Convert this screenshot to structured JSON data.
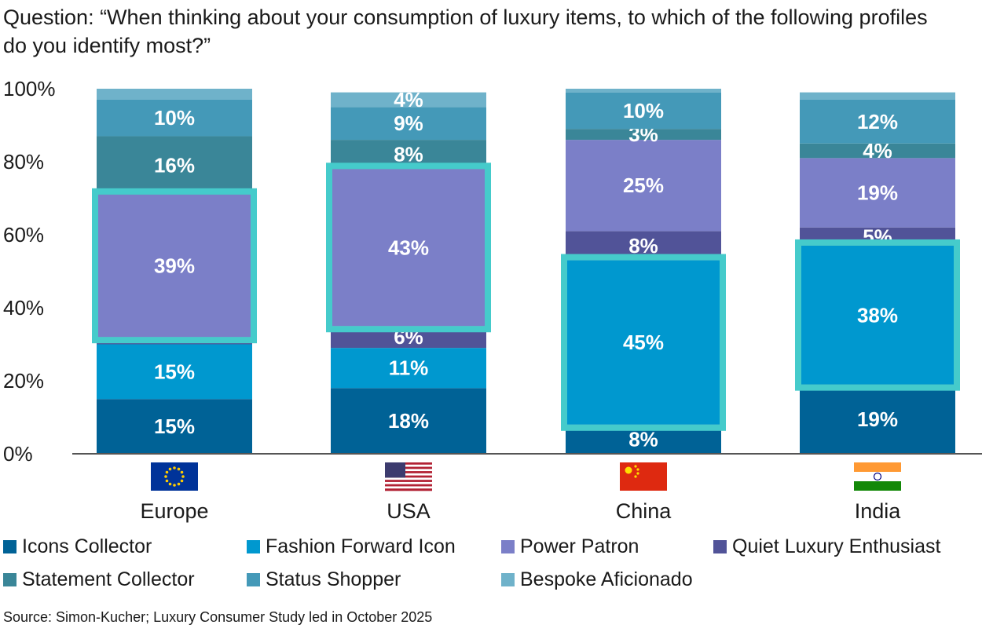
{
  "question": "Question: “When thinking about your consumption of luxury items, to which of the following profiles do you identify most?”",
  "source": "Source: Simon-Kucher; Luxury Consumer Study led in October 2025",
  "colors": {
    "Icons Collector": "#006296",
    "Fashion Forward Icon": "#0098cf",
    "Power Patron": "#7b7fc8",
    "Quiet Luxury Enthusiast": "#515398",
    "Statement Collector": "#3a8698",
    "Status Shopper": "#4499b8",
    "Bespoke Aficionado": "#6fb2ca",
    "highlight": "#45cbcb"
  },
  "chart_data": {
    "type": "bar",
    "stacked": true,
    "ylim": [
      0,
      100
    ],
    "yticks": [
      "0%",
      "20%",
      "40%",
      "60%",
      "80%",
      "100%"
    ],
    "categories": [
      "Europe",
      "USA",
      "China",
      "India"
    ],
    "flags": [
      "eu-flag-icon",
      "us-flag-icon",
      "cn-flag-icon",
      "in-flag-icon"
    ],
    "series": [
      {
        "name": "Icons Collector",
        "values": [
          15,
          18,
          8,
          19
        ],
        "labels": [
          "15%",
          "18%",
          "8%",
          "19%"
        ]
      },
      {
        "name": "Fashion Forward Icon",
        "values": [
          15,
          11,
          45,
          38
        ],
        "labels": [
          "15%",
          "11%",
          "45%",
          "38%"
        ]
      },
      {
        "name": "Quiet Luxury Enthusiast",
        "values": [
          2,
          6,
          8,
          5
        ],
        "labels": [
          "",
          "6%",
          "8%",
          "5%"
        ]
      },
      {
        "name": "Power Patron",
        "values": [
          39,
          43,
          25,
          19
        ],
        "labels": [
          "39%",
          "43%",
          "25%",
          "19%"
        ]
      },
      {
        "name": "Statement Collector",
        "values": [
          16,
          8,
          3,
          4
        ],
        "labels": [
          "16%",
          "8%",
          "3%",
          "4%"
        ]
      },
      {
        "name": "Status Shopper",
        "values": [
          10,
          9,
          10,
          12
        ],
        "labels": [
          "10%",
          "9%",
          "10%",
          "12%"
        ]
      },
      {
        "name": "Bespoke Aficionado",
        "values": [
          3,
          4,
          1,
          2
        ],
        "labels": [
          "",
          "4%",
          "",
          ""
        ]
      }
    ],
    "highlighted": [
      "Power Patron",
      "Power Patron",
      "Fashion Forward Icon",
      "Fashion Forward Icon"
    ],
    "legend": [
      "Icons Collector",
      "Fashion Forward Icon",
      "Power Patron",
      "Quiet Luxury Enthusiast",
      "Statement Collector",
      "Status Shopper",
      "Bespoke Aficionado"
    ]
  }
}
